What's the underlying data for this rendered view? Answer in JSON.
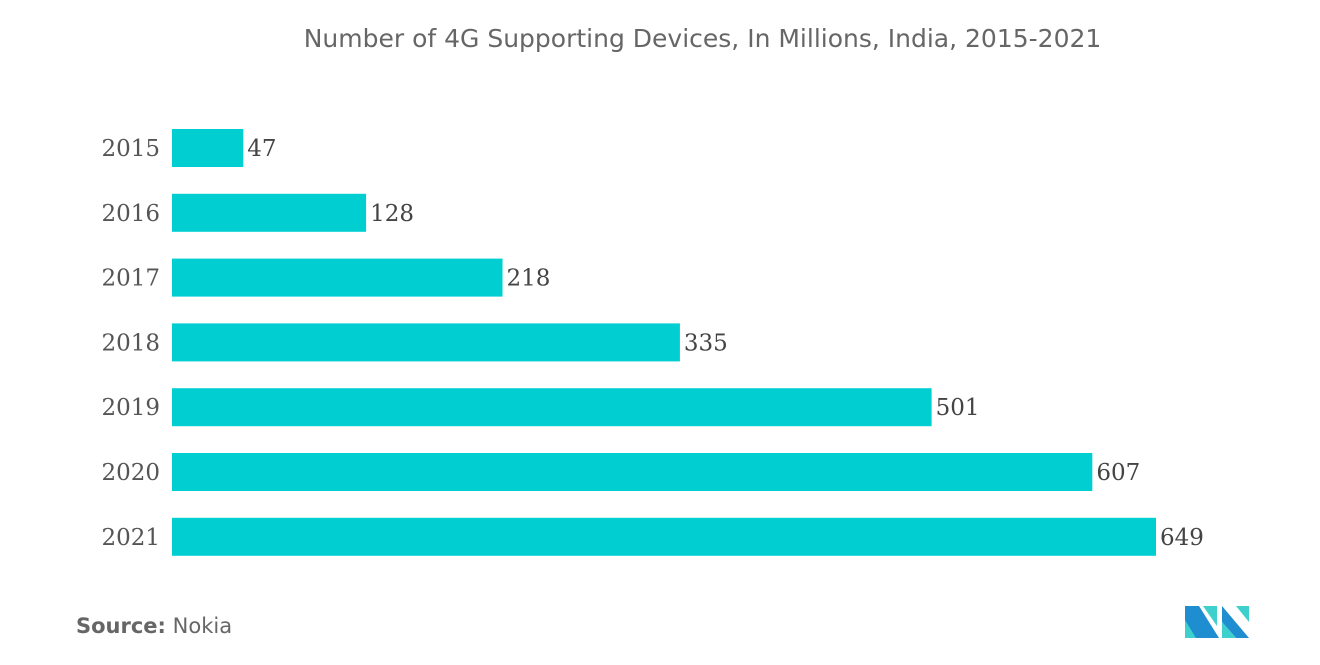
{
  "chart_data": {
    "type": "bar",
    "orientation": "horizontal",
    "title": "Number of 4G Supporting Devices, In Millions, India, 2015-2021",
    "categories": [
      "2015",
      "2016",
      "2017",
      "2018",
      "2019",
      "2020",
      "2021"
    ],
    "values": [
      47,
      128,
      218,
      335,
      501,
      607,
      649
    ],
    "xlim": [
      0,
      649
    ],
    "grid": false,
    "data_labels": true,
    "bar_color": "#00ced1"
  },
  "source": {
    "label": "Source:",
    "value": "Nokia"
  },
  "logo": {
    "colors": [
      "#1f8ed0",
      "#3dd0cc"
    ]
  }
}
